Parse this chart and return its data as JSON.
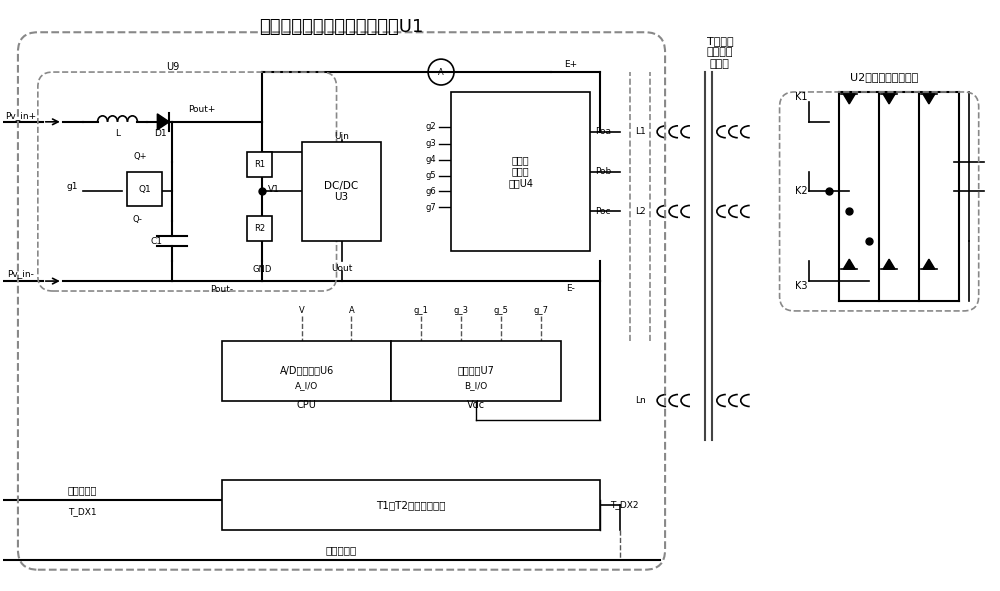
{
  "bg_color": "#ffffff",
  "line_color": "#000000",
  "dashed_color": "#555555",
  "title_main": "功率优化单相或三相调压电路U1",
  "title_transformer": "T多绕组\n高压隔离\n变压器",
  "title_u2": "U2直流功率输出电路",
  "labels": {
    "pv_in_pos": "Pv_in+",
    "pv_in_neg": "Pv_in-",
    "L": "L",
    "D1": "D1",
    "U9": "U9",
    "Pout_pos": "Pout+",
    "Pout_neg": "Pout-",
    "Q_pos": "Q+",
    "Q_neg": "Q-",
    "g1": "g1",
    "Q1": "Q1",
    "C1": "C1",
    "R1": "R1",
    "R2": "R2",
    "V1": "V1",
    "GND": "GND",
    "Uin": "Uin",
    "Uout": "Uout",
    "DCDC_U3": "DC/DC\nU3",
    "g2": "g2",
    "g3": "g3",
    "g4": "g4",
    "g5": "g5",
    "g6": "g6",
    "g7": "g7",
    "three_phase": "三相功\n率驱动\n电路U4",
    "Poa": "Poa",
    "Pob": "Pob",
    "Poc": "Poc",
    "E_pos": "E+",
    "E_neg": "E-",
    "L1": "L1",
    "L2": "L2",
    "Ln": "Ln",
    "K1": "K1",
    "K2": "K2",
    "K3": "K3",
    "AD_U6": "A/D转换电路U6",
    "opto_U7": "光隔驱动U7",
    "A_IO": "A_I/O",
    "B_IO": "B_I/O",
    "CPU": "CPU",
    "Vdc": "Vdc",
    "g_1": "g_1",
    "g_3": "g_3",
    "g_5": "g_5",
    "g_7": "g_7",
    "V_label": "V",
    "A_label": "A",
    "inverter_comm": "逆变器通讯",
    "T_DX1": "T_DX1",
    "T1T2_comm": "T1、T2双向通讯电路",
    "T_DX2": "T_DX2",
    "upper_comm": "上位机通讯"
  },
  "colors": {
    "main_box": "#888888",
    "inner_dashed": "#888888",
    "u2_box": "#888888",
    "transformer_box": "#888888"
  }
}
